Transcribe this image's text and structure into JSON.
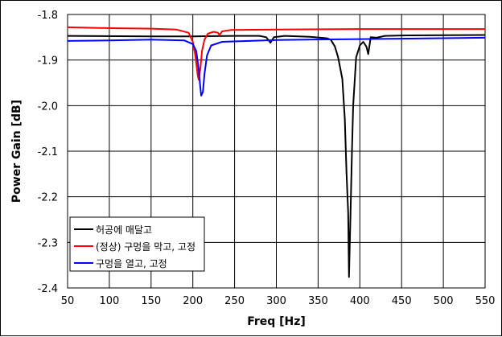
{
  "chart_data": {
    "type": "line",
    "title": "",
    "xlabel": "Freq [Hz]",
    "ylabel": "Power Gain [dB]",
    "xlim": [
      50,
      550
    ],
    "ylim": [
      -2.4,
      -1.8
    ],
    "xticks": [
      "50",
      "100",
      "150",
      "200",
      "250",
      "300",
      "350",
      "400",
      "450",
      "500",
      "550"
    ],
    "yticks": [
      "-1.8",
      "-1.9",
      "-2.0",
      "-2.1",
      "-2.2",
      "-2.3",
      "-2.4"
    ],
    "grid": true,
    "legend_position": "bottom-left",
    "series": [
      {
        "name": "허공에 매달고",
        "color": "#000000",
        "points": [
          [
            50,
            -1.847
          ],
          [
            150,
            -1.848
          ],
          [
            200,
            -1.848
          ],
          [
            250,
            -1.847
          ],
          [
            280,
            -1.847
          ],
          [
            288,
            -1.85
          ],
          [
            293,
            -1.862
          ],
          [
            297,
            -1.85
          ],
          [
            310,
            -1.847
          ],
          [
            340,
            -1.849
          ],
          [
            360,
            -1.852
          ],
          [
            365,
            -1.855
          ],
          [
            370,
            -1.87
          ],
          [
            374,
            -1.894
          ],
          [
            379,
            -1.941
          ],
          [
            382,
            -2.029
          ],
          [
            384,
            -2.146
          ],
          [
            386,
            -2.235
          ],
          [
            387,
            -2.376
          ],
          [
            389,
            -2.223
          ],
          [
            390.6,
            -2.1
          ],
          [
            392,
            -2.0
          ],
          [
            395.6,
            -1.894
          ],
          [
            400,
            -1.868
          ],
          [
            404,
            -1.86
          ],
          [
            408,
            -1.871
          ],
          [
            410,
            -1.887
          ],
          [
            413,
            -1.85
          ],
          [
            420,
            -1.851
          ],
          [
            430,
            -1.847
          ],
          [
            450,
            -1.846
          ],
          [
            550,
            -1.845
          ]
        ]
      },
      {
        "name": "(정상) 구멍을 막고, 고정",
        "color": "#ff0000",
        "points": [
          [
            50,
            -1.828
          ],
          [
            100,
            -1.83
          ],
          [
            150,
            -1.831
          ],
          [
            180,
            -1.833
          ],
          [
            195,
            -1.84
          ],
          [
            200,
            -1.86
          ],
          [
            203,
            -1.89
          ],
          [
            206,
            -1.935
          ],
          [
            207,
            -1.943
          ],
          [
            209,
            -1.92
          ],
          [
            211,
            -1.88
          ],
          [
            214,
            -1.855
          ],
          [
            218,
            -1.842
          ],
          [
            225,
            -1.838
          ],
          [
            230,
            -1.84
          ],
          [
            232,
            -1.845
          ],
          [
            235,
            -1.837
          ],
          [
            245,
            -1.834
          ],
          [
            300,
            -1.833
          ],
          [
            400,
            -1.832
          ],
          [
            550,
            -1.832
          ]
        ]
      },
      {
        "name": "구멍을 열고, 고정",
        "color": "#0000ff",
        "points": [
          [
            50,
            -1.858
          ],
          [
            100,
            -1.857
          ],
          [
            150,
            -1.855
          ],
          [
            190,
            -1.857
          ],
          [
            200,
            -1.865
          ],
          [
            204,
            -1.88
          ],
          [
            207,
            -1.92
          ],
          [
            209,
            -1.96
          ],
          [
            210,
            -1.978
          ],
          [
            212,
            -1.97
          ],
          [
            214,
            -1.93
          ],
          [
            217,
            -1.89
          ],
          [
            222,
            -1.868
          ],
          [
            235,
            -1.86
          ],
          [
            300,
            -1.856
          ],
          [
            400,
            -1.854
          ],
          [
            500,
            -1.852
          ],
          [
            550,
            -1.851
          ]
        ]
      }
    ]
  }
}
